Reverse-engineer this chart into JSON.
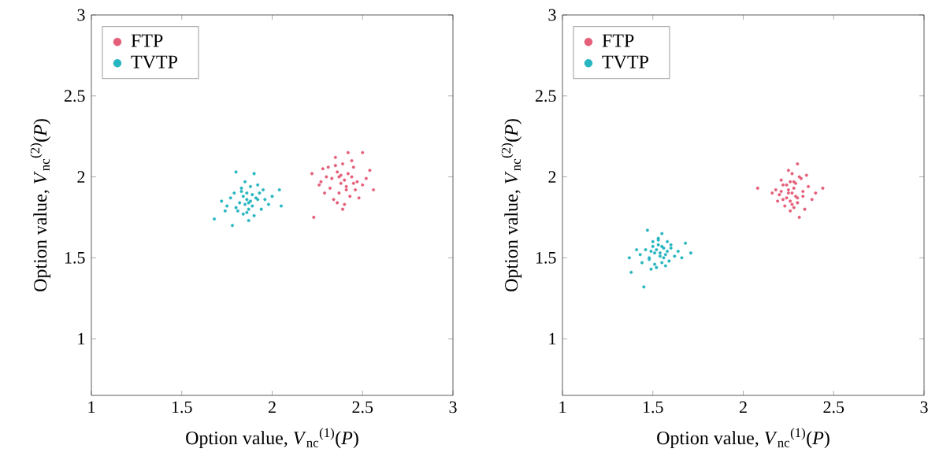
{
  "chart_data": [
    {
      "type": "scatter",
      "xlabel": "Option value, *V*$_{nc}$$^{(1)}$(*P*)",
      "ylabel": "Option value, *V*$_{nc}$$^{(2)}$(*P*)",
      "xlim": [
        1,
        3
      ],
      "ylim": [
        0.65,
        3
      ],
      "xticks": [
        1,
        1.5,
        2,
        2.5,
        3
      ],
      "yticks": [
        1,
        1.5,
        2,
        2.5,
        3
      ],
      "legend": "top left",
      "marker": "circle",
      "grid": false,
      "series": [
        {
          "name": "FTP",
          "color": "#e45f79",
          "x": [
            2.42,
            2.5,
            2.22,
            2.23,
            2.56,
            2.39,
            2.35,
            2.26,
            2.54,
            2.4,
            2.38,
            2.44,
            2.33,
            2.47,
            2.36,
            2.41,
            2.3,
            2.45,
            2.37,
            2.43,
            2.28,
            2.5,
            2.34,
            2.39,
            2.46,
            2.32,
            2.42,
            2.36,
            2.52,
            2.29,
            2.4,
            2.44,
            2.35,
            2.48,
            2.31,
            2.38,
            2.27,
            2.45,
            2.41,
            2.37
          ],
          "values": [
            2.15,
            2.15,
            2.02,
            1.75,
            1.92,
            1.8,
            2.12,
            1.95,
            2.04,
            1.98,
            1.96,
            2.0,
            1.99,
            1.97,
            2.03,
            1.94,
            2.0,
            2.06,
            1.9,
            1.88,
            2.05,
            1.95,
            1.86,
            2.08,
            1.92,
            1.93,
            2.02,
            1.84,
            1.99,
            1.9,
            1.83,
            2.1,
            2.07,
            1.87,
            2.06,
            2.01,
            1.97,
            1.96,
            1.92,
            2.0
          ]
        },
        {
          "name": "TVTP",
          "color": "#27b5c0",
          "x": [
            1.68,
            1.8,
            1.9,
            2.05,
            2.04,
            1.87,
            1.78,
            1.86,
            1.88,
            1.84,
            1.91,
            1.82,
            1.93,
            1.85,
            1.89,
            1.75,
            1.96,
            1.83,
            1.87,
            1.79,
            1.98,
            1.72,
            1.92,
            1.86,
            1.81,
            1.94,
            1.88,
            1.77,
            2.0,
            1.85,
            1.9,
            1.83,
            1.74,
            1.95,
            1.87,
            1.8,
            1.92,
            1.84,
            1.89,
            1.86
          ],
          "values": [
            1.74,
            2.03,
            2.02,
            1.82,
            1.92,
            1.73,
            1.7,
            1.86,
            1.85,
            1.88,
            1.87,
            1.84,
            1.9,
            1.83,
            1.89,
            1.82,
            1.86,
            1.93,
            1.8,
            1.9,
            1.83,
            1.85,
            1.95,
            1.78,
            1.79,
            1.8,
            1.94,
            1.87,
            1.88,
            1.97,
            1.76,
            1.91,
            1.79,
            1.92,
            1.84,
            1.81,
            1.86,
            1.77,
            1.82,
            1.9
          ]
        }
      ]
    },
    {
      "type": "scatter",
      "xlabel": "Option value, *V*$_{nc}$$^{(1)}$(*P*)",
      "ylabel": "Option value, *V*$_{nc}$$^{(2)}$(*P*)",
      "xlim": [
        1,
        3
      ],
      "ylim": [
        0.65,
        3
      ],
      "xticks": [
        1,
        1.5,
        2,
        2.5,
        3
      ],
      "yticks": [
        1,
        1.5,
        2,
        2.5,
        3
      ],
      "legend": "top left",
      "marker": "circle",
      "grid": false,
      "series": [
        {
          "name": "FTP",
          "color": "#e45f79",
          "x": [
            2.3,
            2.08,
            2.44,
            2.31,
            2.27,
            2.25,
            2.29,
            2.22,
            2.33,
            2.2,
            2.36,
            2.26,
            2.28,
            2.24,
            2.31,
            2.18,
            2.38,
            2.23,
            2.27,
            2.3,
            2.21,
            2.34,
            2.25,
            2.29,
            2.16,
            2.4,
            2.26,
            2.32,
            2.22,
            2.28,
            2.19,
            2.35,
            2.24,
            2.3,
            2.27,
            2.21,
            2.33,
            2.26,
            2.28,
            2.25
          ],
          "values": [
            2.08,
            1.93,
            1.93,
            1.75,
            1.9,
            1.92,
            1.88,
            1.95,
            1.91,
            1.89,
            1.94,
            1.85,
            1.97,
            1.87,
            2.0,
            1.92,
            1.86,
            1.82,
            2.02,
            1.84,
            1.98,
            1.8,
            2.04,
            1.96,
            1.9,
            1.9,
            1.79,
            1.99,
            1.86,
            1.93,
            1.85,
            2.01,
            1.95,
            1.87,
            1.83,
            1.91,
            1.88,
            1.97,
            1.81,
            1.9
          ]
        },
        {
          "name": "TVTP",
          "color": "#27b5c0",
          "x": [
            1.38,
            1.45,
            1.71,
            1.47,
            1.55,
            1.37,
            1.68,
            1.49,
            1.54,
            1.52,
            1.57,
            1.5,
            1.56,
            1.53,
            1.48,
            1.6,
            1.51,
            1.58,
            1.46,
            1.55,
            1.62,
            1.43,
            1.53,
            1.59,
            1.5,
            1.64,
            1.44,
            1.56,
            1.52,
            1.6,
            1.48,
            1.54,
            1.57,
            1.41,
            1.66,
            1.51,
            1.55,
            1.49,
            1.58,
            1.53
          ],
          "values": [
            1.41,
            1.32,
            1.53,
            1.67,
            1.65,
            1.5,
            1.59,
            1.54,
            1.53,
            1.55,
            1.52,
            1.57,
            1.5,
            1.58,
            1.49,
            1.56,
            1.46,
            1.6,
            1.55,
            1.47,
            1.51,
            1.52,
            1.62,
            1.48,
            1.6,
            1.54,
            1.47,
            1.56,
            1.44,
            1.58,
            1.5,
            1.51,
            1.45,
            1.55,
            1.5,
            1.53,
            1.57,
            1.43,
            1.54,
            1.61
          ]
        }
      ]
    }
  ]
}
